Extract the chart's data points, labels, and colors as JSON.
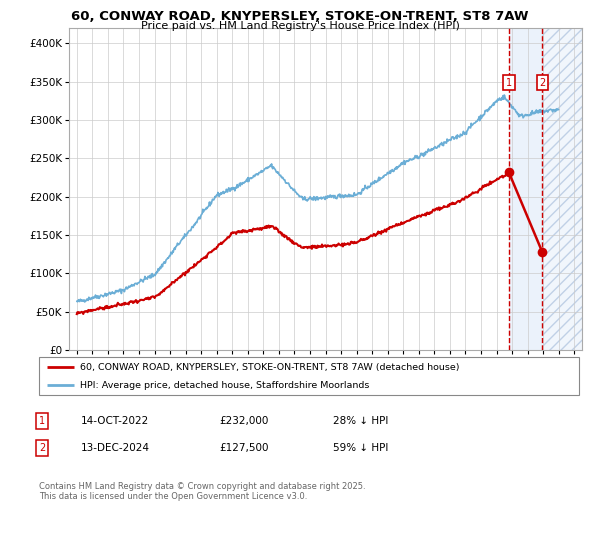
{
  "title": "60, CONWAY ROAD, KNYPERSLEY, STOKE-ON-TRENT, ST8 7AW",
  "subtitle": "Price paid vs. HM Land Registry's House Price Index (HPI)",
  "legend1": "60, CONWAY ROAD, KNYPERSLEY, STOKE-ON-TRENT, ST8 7AW (detached house)",
  "legend2": "HPI: Average price, detached house, Staffordshire Moorlands",
  "footnote": "Contains HM Land Registry data © Crown copyright and database right 2025.\nThis data is licensed under the Open Government Licence v3.0.",
  "annotation1_date": "14-OCT-2022",
  "annotation1_price": "£232,000",
  "annotation1_hpi": "28% ↓ HPI",
  "annotation2_date": "13-DEC-2024",
  "annotation2_price": "£127,500",
  "annotation2_hpi": "59% ↓ HPI",
  "marker1_x": 2022.79,
  "marker2_x": 2024.95,
  "marker1_y_price": 232000,
  "marker2_y_price": 127500,
  "hpi_color": "#6baed6",
  "price_color": "#cc0000",
  "shade_color": "#ddeeff",
  "background_color": "#ffffff",
  "grid_color": "#cccccc",
  "ylim": [
    0,
    420000
  ],
  "xlim": [
    1994.5,
    2027.5
  ],
  "hpi_seed": 42,
  "price_seed": 99
}
